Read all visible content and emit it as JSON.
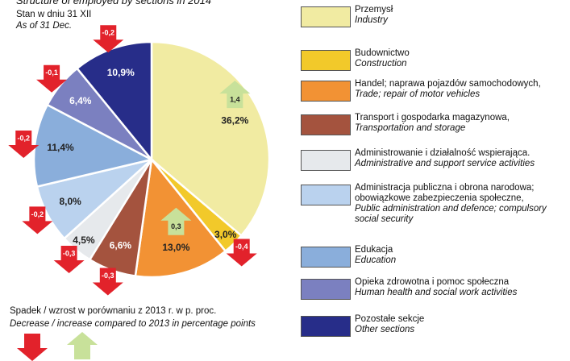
{
  "chart_data": {
    "type": "pie",
    "title": "Structure of employed by sections in 2014",
    "subtitle": "Stan w dniu 31 XII",
    "subtitle_en": "As of 31 Dec.",
    "categories": [
      "Przemysł",
      "Budownictwo",
      "Handel; naprawa pojazdów samochodowych,",
      "Transport i gospodarka magazynowa,",
      "Administrowanie i działalność wspierająca.",
      "Administracja publiczna i obrona narodowa; obowiązkowe zabezpieczenia społeczne,",
      "Edukacja",
      "Opieka zdrowotna i pomoc społeczna",
      "Pozostałe sekcje"
    ],
    "categories_en": [
      "Industry",
      "Construction",
      "Trade; repair of motor vehicles",
      "Transportation and storage",
      "Administrative and support service activities",
      "Public administration and defence; compulsory social security",
      "Education",
      "Human health and social work activities",
      "Other sections"
    ],
    "values": [
      36.2,
      3.0,
      13.0,
      6.6,
      4.5,
      8.0,
      11.4,
      6.4,
      10.9
    ],
    "value_labels": [
      "36,2%",
      "3,0%",
      "13,0%",
      "6,6%",
      "4,5%",
      "8,0%",
      "11,4%",
      "6,4%",
      "10,9%"
    ],
    "colors": [
      "#f1eba2",
      "#f2c92a",
      "#f29234",
      "#a4533e",
      "#e6e9ec",
      "#bad2ee",
      "#8aaedb",
      "#7b80c0",
      "#272d89"
    ],
    "changes": [
      1.4,
      -0.4,
      0.3,
      -0.3,
      -0.3,
      -0.2,
      -0.2,
      -0.1,
      -0.2
    ],
    "change_labels": [
      "1,4",
      "-0,4",
      "0,3",
      "-0,3",
      "-0,3",
      "-0,2",
      "-0,2",
      "-0,1",
      "-0,2"
    ],
    "change_colors": {
      "decrease": "#e2222b",
      "increase": "#c8e19a"
    },
    "note": "Spadek / wzrost w porównaniu z 2013 r. w p. proc.",
    "note_en": "Decrease / increase compared to 2013 in percentage points"
  }
}
